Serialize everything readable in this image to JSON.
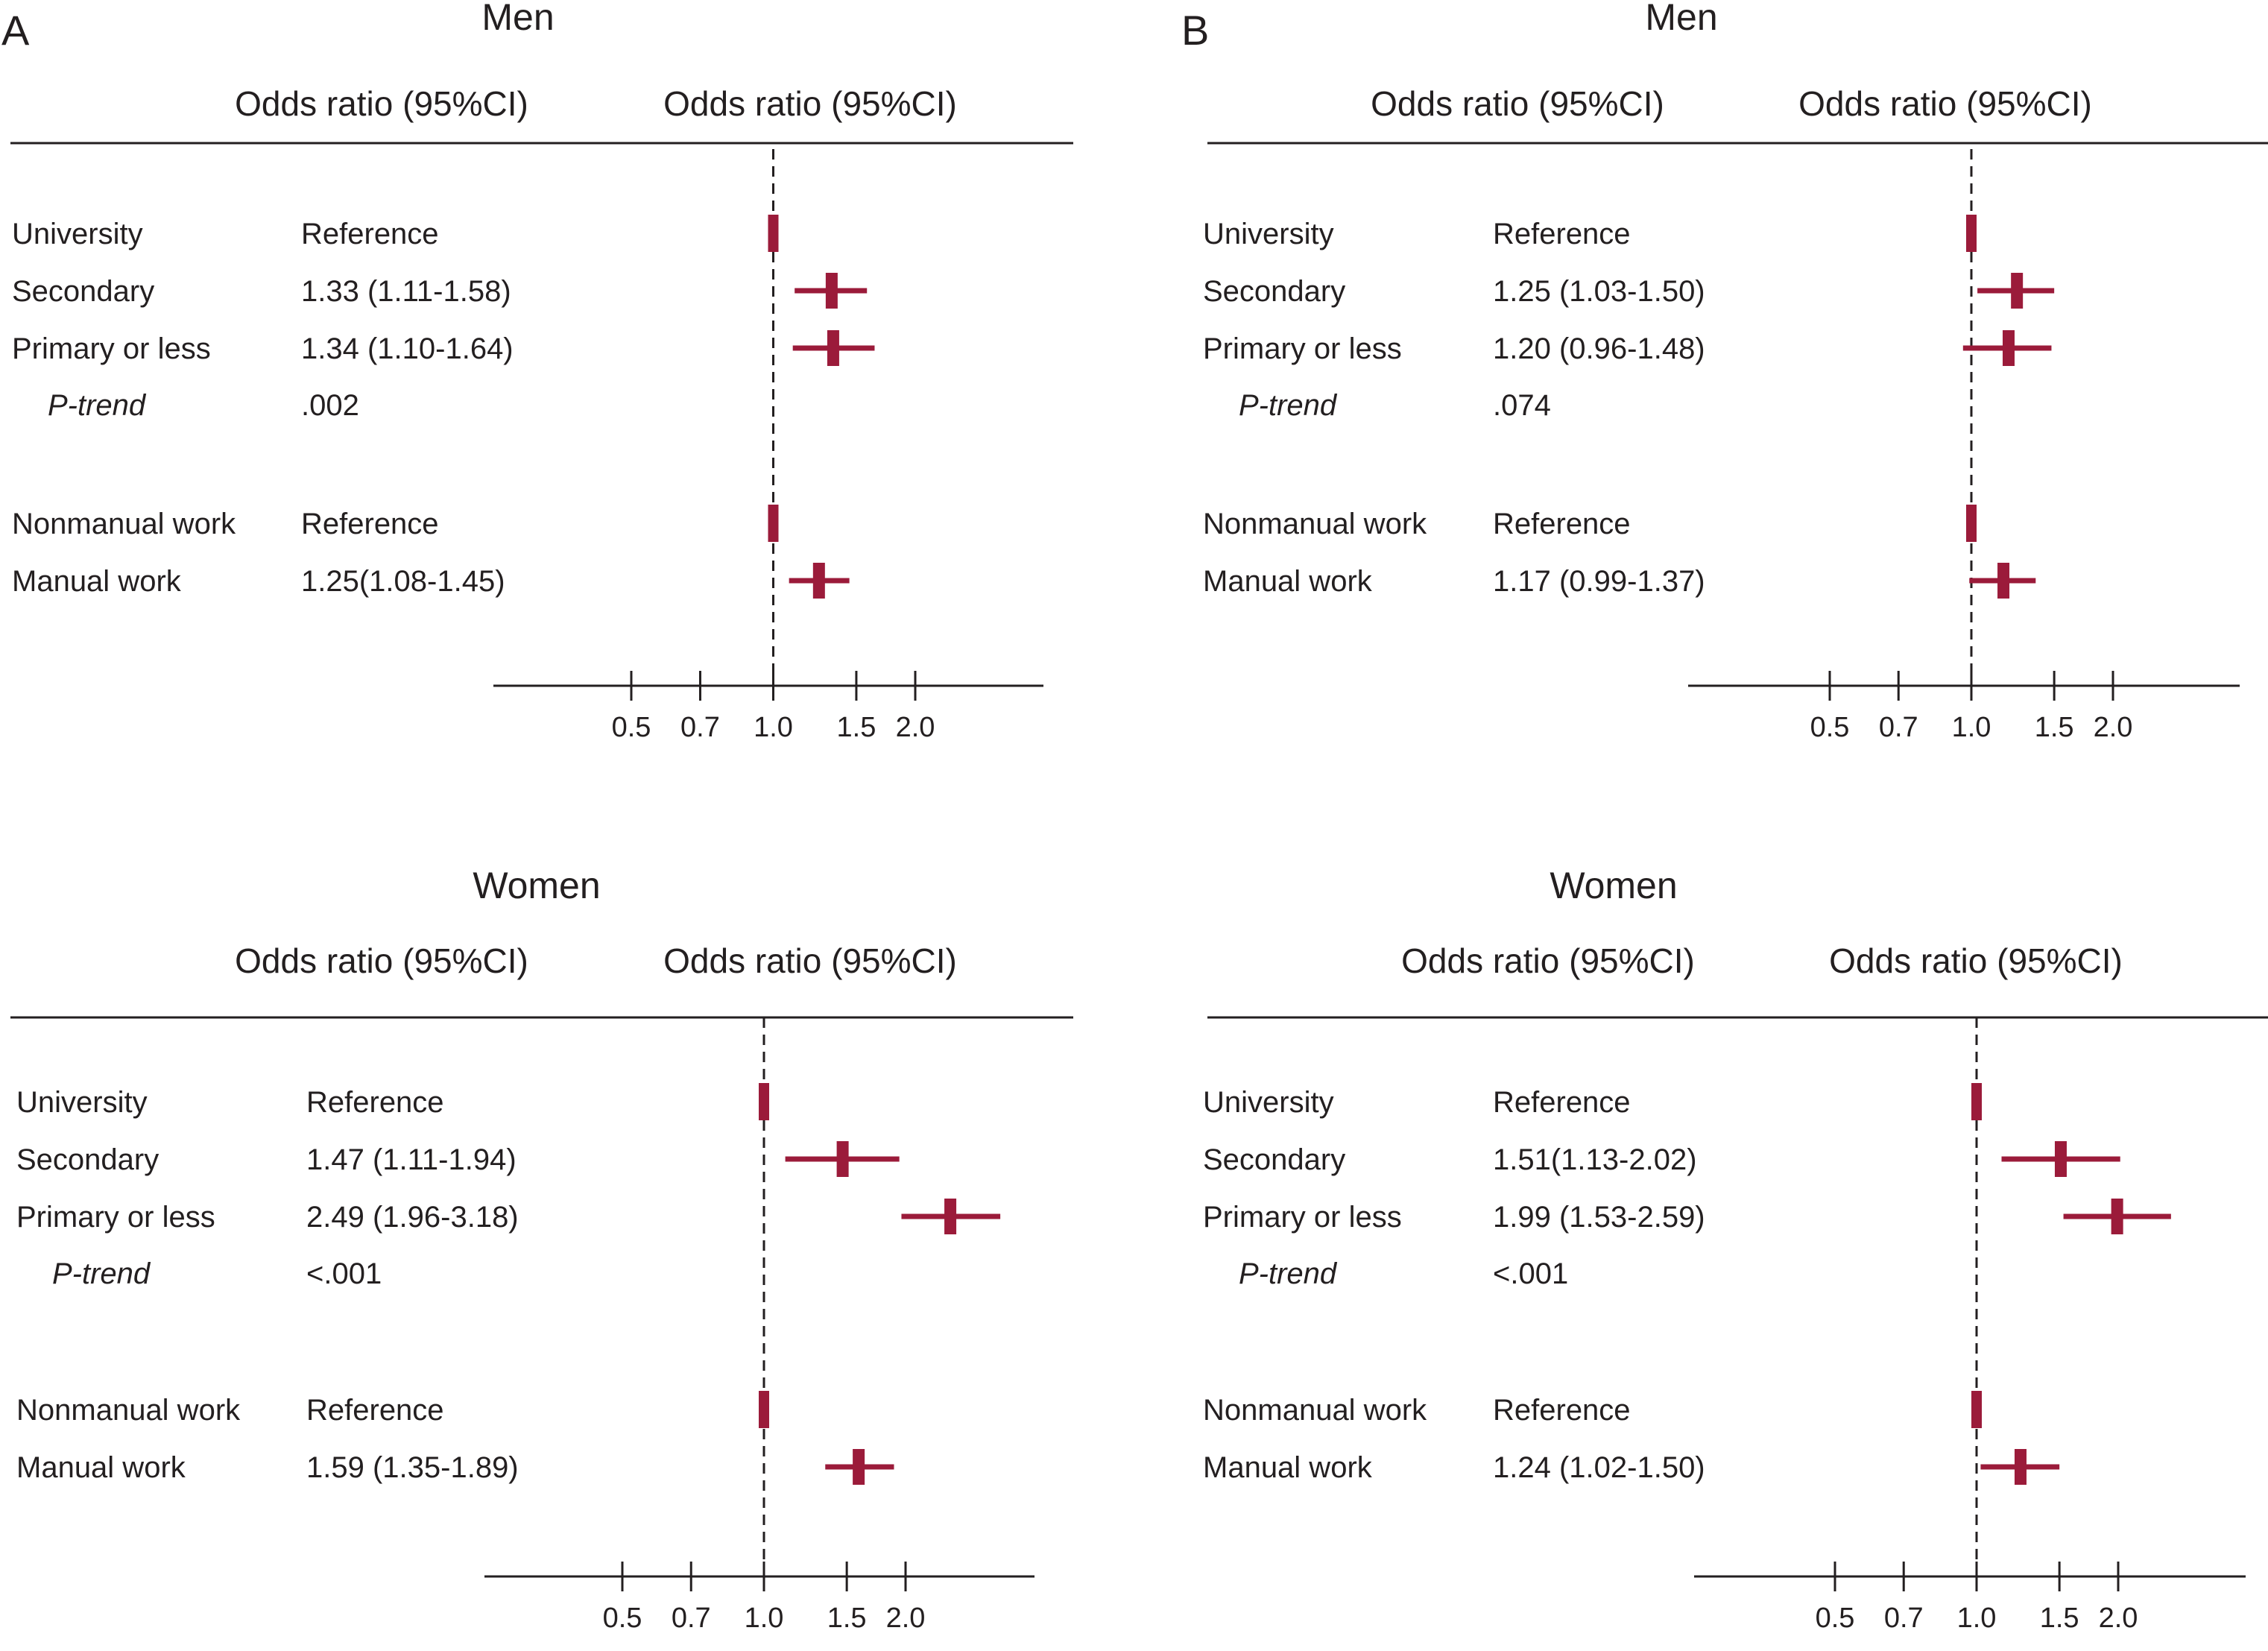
{
  "colors": {
    "marker": "#9b1b3a",
    "text": "#231f20",
    "rule": "#231f20"
  },
  "chart_data": [
    {
      "type": "forest",
      "panel_label": "A",
      "title": "Men",
      "col_headers": [
        "Odds ratio (95%CI)",
        "Odds ratio (95%CI)"
      ],
      "x_ticks": [
        0.5,
        0.7,
        1.0,
        1.5,
        2.0
      ],
      "x_tick_labels": [
        "0.5",
        "0.7",
        "1.0",
        "1.5",
        "2.0"
      ],
      "x_scale": "log",
      "reference_line": 1.0,
      "rows": [
        {
          "label": "University",
          "text": "Reference",
          "or": 1.0,
          "lo": null,
          "hi": null
        },
        {
          "label": "Secondary",
          "text": "1.33 (1.11-1.58)",
          "or": 1.33,
          "lo": 1.11,
          "hi": 1.58
        },
        {
          "label": "Primary or less",
          "text": "1.34 (1.10-1.64)",
          "or": 1.34,
          "lo": 1.1,
          "hi": 1.64
        },
        {
          "label": "P-trend",
          "text": ".002",
          "italic": true
        },
        {
          "label": "Nonmanual work",
          "text": "Reference",
          "or": 1.0,
          "lo": null,
          "hi": null
        },
        {
          "label": "Manual work",
          "text": "1.25(1.08-1.45)",
          "or": 1.25,
          "lo": 1.08,
          "hi": 1.45
        }
      ]
    },
    {
      "type": "forest",
      "panel_label": "B",
      "title": "Men",
      "col_headers": [
        "Odds ratio (95%CI)",
        "Odds ratio (95%CI)"
      ],
      "x_ticks": [
        0.5,
        0.7,
        1.0,
        1.5,
        2.0
      ],
      "x_tick_labels": [
        "0.5",
        "0.7",
        "1.0",
        "1.5",
        "2.0"
      ],
      "x_scale": "log",
      "reference_line": 1.0,
      "rows": [
        {
          "label": "University",
          "text": "Reference",
          "or": 1.0,
          "lo": null,
          "hi": null
        },
        {
          "label": "Secondary",
          "text": "1.25 (1.03-1.50)",
          "or": 1.25,
          "lo": 1.03,
          "hi": 1.5
        },
        {
          "label": "Primary or less",
          "text": "1.20 (0.96-1.48)",
          "or": 1.2,
          "lo": 0.96,
          "hi": 1.48
        },
        {
          "label": "P-trend",
          "text": ".074",
          "italic": true
        },
        {
          "label": "Nonmanual work",
          "text": "Reference",
          "or": 1.0,
          "lo": null,
          "hi": null
        },
        {
          "label": "Manual work",
          "text": "1.17 (0.99-1.37)",
          "or": 1.17,
          "lo": 0.99,
          "hi": 1.37
        }
      ]
    },
    {
      "type": "forest",
      "panel_label": "",
      "title": "Women",
      "col_headers": [
        "Odds ratio (95%CI)",
        "Odds ratio (95%CI)"
      ],
      "x_ticks": [
        0.5,
        0.7,
        1.0,
        1.5,
        2.0
      ],
      "x_tick_labels": [
        "0.5",
        "0.7",
        "1.0",
        "1.5",
        "2.0"
      ],
      "x_scale": "log",
      "reference_line": 1.0,
      "rows": [
        {
          "label": "University",
          "text": "Reference",
          "or": 1.0,
          "lo": null,
          "hi": null
        },
        {
          "label": "Secondary",
          "text": "1.47 (1.11-1.94)",
          "or": 1.47,
          "lo": 1.11,
          "hi": 1.94
        },
        {
          "label": "Primary or less",
          "text": "2.49 (1.96-3.18)",
          "or": 2.49,
          "lo": 1.96,
          "hi": 3.18
        },
        {
          "label": "P-trend",
          "text": "<.001",
          "italic": true
        },
        {
          "label": "Nonmanual work",
          "text": "Reference",
          "or": 1.0,
          "lo": null,
          "hi": null
        },
        {
          "label": "Manual work",
          "text": "1.59 (1.35-1.89)",
          "or": 1.59,
          "lo": 1.35,
          "hi": 1.89
        }
      ]
    },
    {
      "type": "forest",
      "panel_label": "",
      "title": "Women",
      "col_headers": [
        "Odds ratio (95%CI)",
        "Odds ratio (95%CI)"
      ],
      "x_ticks": [
        0.5,
        0.7,
        1.0,
        1.5,
        2.0
      ],
      "x_tick_labels": [
        "0.5",
        "0.7",
        "1.0",
        "1.5",
        "2.0"
      ],
      "x_scale": "log",
      "reference_line": 1.0,
      "rows": [
        {
          "label": "University",
          "text": "Reference",
          "or": 1.0,
          "lo": null,
          "hi": null
        },
        {
          "label": "Secondary",
          "text": "1.51(1.13-2.02)",
          "or": 1.51,
          "lo": 1.13,
          "hi": 2.02
        },
        {
          "label": "Primary or less",
          "text": "1.99 (1.53-2.59)",
          "or": 1.99,
          "lo": 1.53,
          "hi": 2.59
        },
        {
          "label": "P-trend",
          "text": "<.001",
          "italic": true
        },
        {
          "label": "Nonmanual work",
          "text": "Reference",
          "or": 1.0,
          "lo": null,
          "hi": null
        },
        {
          "label": "Manual work",
          "text": "1.24 (1.02-1.50)",
          "or": 1.24,
          "lo": 1.02,
          "hi": 1.5
        }
      ]
    }
  ]
}
